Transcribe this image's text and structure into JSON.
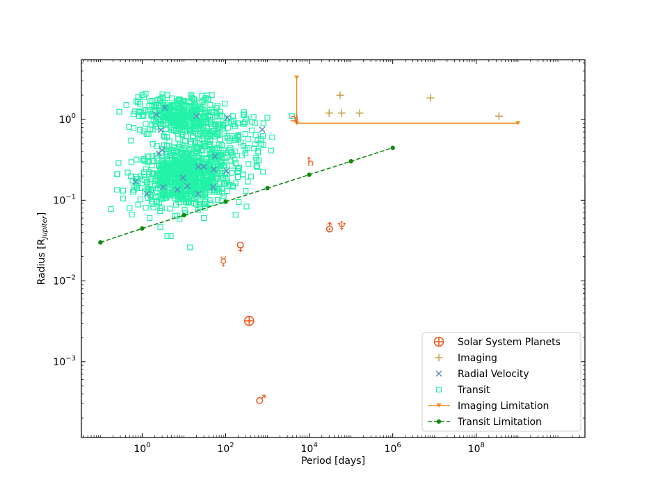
{
  "chart_data": {
    "type": "scatter",
    "xlabel": "Period [days]",
    "ylabel": "Radius [R",
    "ylabel_sub": "Jupiter",
    "ylabel_close": "]",
    "xscale": "log",
    "yscale": "log",
    "xlim": [
      0.035,
      40000000000
    ],
    "ylim": [
      0.000115,
      5.5
    ],
    "x_ticks": [
      {
        "value": 1,
        "base": "10",
        "exp": "0"
      },
      {
        "value": 100,
        "base": "10",
        "exp": "2"
      },
      {
        "value": 10000,
        "base": "10",
        "exp": "4"
      },
      {
        "value": 1000000,
        "base": "10",
        "exp": "6"
      },
      {
        "value": 100000000,
        "base": "10",
        "exp": "8"
      }
    ],
    "y_ticks": [
      {
        "value": 0.001,
        "base": "10",
        "exp": "−3"
      },
      {
        "value": 0.01,
        "base": "10",
        "exp": "−2"
      },
      {
        "value": 0.1,
        "base": "10",
        "exp": "−1"
      },
      {
        "value": 1,
        "base": "10",
        "exp": "0"
      }
    ],
    "grid": false,
    "legend_position": "bottom-right",
    "legend": [
      {
        "label": "Solar System Planets",
        "marker": "circled-plus",
        "color": "#f05a1e"
      },
      {
        "label": "Imaging",
        "marker": "plus",
        "color": "#c8a050"
      },
      {
        "label": "Radial Velocity",
        "marker": "x",
        "color": "#5b8cc0"
      },
      {
        "label": "Transit",
        "marker": "square",
        "color": "#22f2a8"
      },
      {
        "label": "Imaging Limitation",
        "marker": "line-triangle",
        "color": "#f28a1a"
      },
      {
        "label": "Transit Limitation",
        "marker": "dashed-dot",
        "color": "#138a13"
      }
    ],
    "solar_system": [
      {
        "name": "Mercury",
        "symbol": "☿",
        "x": 88,
        "y": 0.0174
      },
      {
        "name": "Venus",
        "symbol": "♀",
        "x": 225,
        "y": 0.0266
      },
      {
        "name": "Earth",
        "symbol": "⊕",
        "x": 365,
        "y": 0.0032
      },
      {
        "name": "Mars",
        "symbol": "♂",
        "x": 687,
        "y": 0.00034
      },
      {
        "name": "Jupiter",
        "symbol": "♃",
        "x": 4333,
        "y": 1.0
      },
      {
        "name": "Saturn",
        "symbol": "♄",
        "x": 10759,
        "y": 0.3
      },
      {
        "name": "Uranus",
        "symbol": "⛢",
        "x": 30687,
        "y": 0.045
      },
      {
        "name": "Neptune",
        "symbol": "♆",
        "x": 60190,
        "y": 0.048
      }
    ],
    "imaging": [
      {
        "x": 30000,
        "y": 1.2
      },
      {
        "x": 55000,
        "y": 2.0
      },
      {
        "x": 60000,
        "y": 1.2
      },
      {
        "x": 160000,
        "y": 1.2
      },
      {
        "x": 8000000,
        "y": 1.85
      },
      {
        "x": 350000000,
        "y": 1.1
      }
    ],
    "radial_velocity": [
      {
        "x": 0.7,
        "y": 0.17
      },
      {
        "x": 1.3,
        "y": 0.12
      },
      {
        "x": 2.2,
        "y": 1.15
      },
      {
        "x": 2.5,
        "y": 0.38
      },
      {
        "x": 2.8,
        "y": 0.74
      },
      {
        "x": 3.0,
        "y": 0.42
      },
      {
        "x": 3.2,
        "y": 0.145
      },
      {
        "x": 3.5,
        "y": 1.4
      },
      {
        "x": 7,
        "y": 0.135
      },
      {
        "x": 9.5,
        "y": 0.19
      },
      {
        "x": 12,
        "y": 0.15
      },
      {
        "x": 20,
        "y": 1.1
      },
      {
        "x": 22,
        "y": 0.26
      },
      {
        "x": 22,
        "y": 0.12
      },
      {
        "x": 30,
        "y": 0.26
      },
      {
        "x": 50,
        "y": 0.145
      },
      {
        "x": 52,
        "y": 0.24
      },
      {
        "x": 55,
        "y": 0.35
      },
      {
        "x": 105,
        "y": 0.23
      },
      {
        "x": 110,
        "y": 1.05
      },
      {
        "x": 750,
        "y": 0.75
      }
    ],
    "transit": {
      "count": 1200,
      "note_values": "dense cluster",
      "sample": [
        {
          "x": 0.5,
          "y": 0.08
        },
        {
          "x": 0.8,
          "y": 1.9
        },
        {
          "x": 1.0,
          "y": 2.0
        },
        {
          "x": 1.5,
          "y": 0.06
        },
        {
          "x": 4.0,
          "y": 0.036
        },
        {
          "x": 14,
          "y": 0.026
        },
        {
          "x": 0.35,
          "y": 0.105
        },
        {
          "x": 0.45,
          "y": 0.22
        },
        {
          "x": 1.8,
          "y": 0.5
        },
        {
          "x": 10,
          "y": 1.0
        },
        {
          "x": 100,
          "y": 0.9
        },
        {
          "x": 200,
          "y": 0.6
        },
        {
          "x": 500,
          "y": 0.9
        },
        {
          "x": 700,
          "y": 0.5
        },
        {
          "x": 1000,
          "y": 1.05
        },
        {
          "x": 1300,
          "y": 0.6
        },
        {
          "x": 3900,
          "y": 1.1
        },
        {
          "x": 0.18,
          "y": 0.078
        },
        {
          "x": 0.25,
          "y": 0.135
        },
        {
          "x": 300,
          "y": 0.13
        },
        {
          "x": 350,
          "y": 0.28
        },
        {
          "x": 600,
          "y": 0.41
        },
        {
          "x": 800,
          "y": 0.9
        },
        {
          "x": 4,
          "y": 2.0
        },
        {
          "x": 15,
          "y": 1.95
        },
        {
          "x": 30,
          "y": 0.06
        },
        {
          "x": 60,
          "y": 0.3
        },
        {
          "x": 150,
          "y": 1.1
        }
      ]
    },
    "imaging_limitation": [
      {
        "x": 5000,
        "y": 3.3
      },
      {
        "x": 5000,
        "y": 0.9
      },
      {
        "x": 1000000000,
        "y": 0.9
      }
    ],
    "transit_limitation": [
      {
        "x": 0.1,
        "y": 0.03
      },
      {
        "x": 1,
        "y": 0.0447
      },
      {
        "x": 10,
        "y": 0.0652
      },
      {
        "x": 100,
        "y": 0.096
      },
      {
        "x": 1000,
        "y": 0.141
      },
      {
        "x": 10000,
        "y": 0.207
      },
      {
        "x": 100000,
        "y": 0.304
      },
      {
        "x": 1000000,
        "y": 0.446
      }
    ]
  }
}
